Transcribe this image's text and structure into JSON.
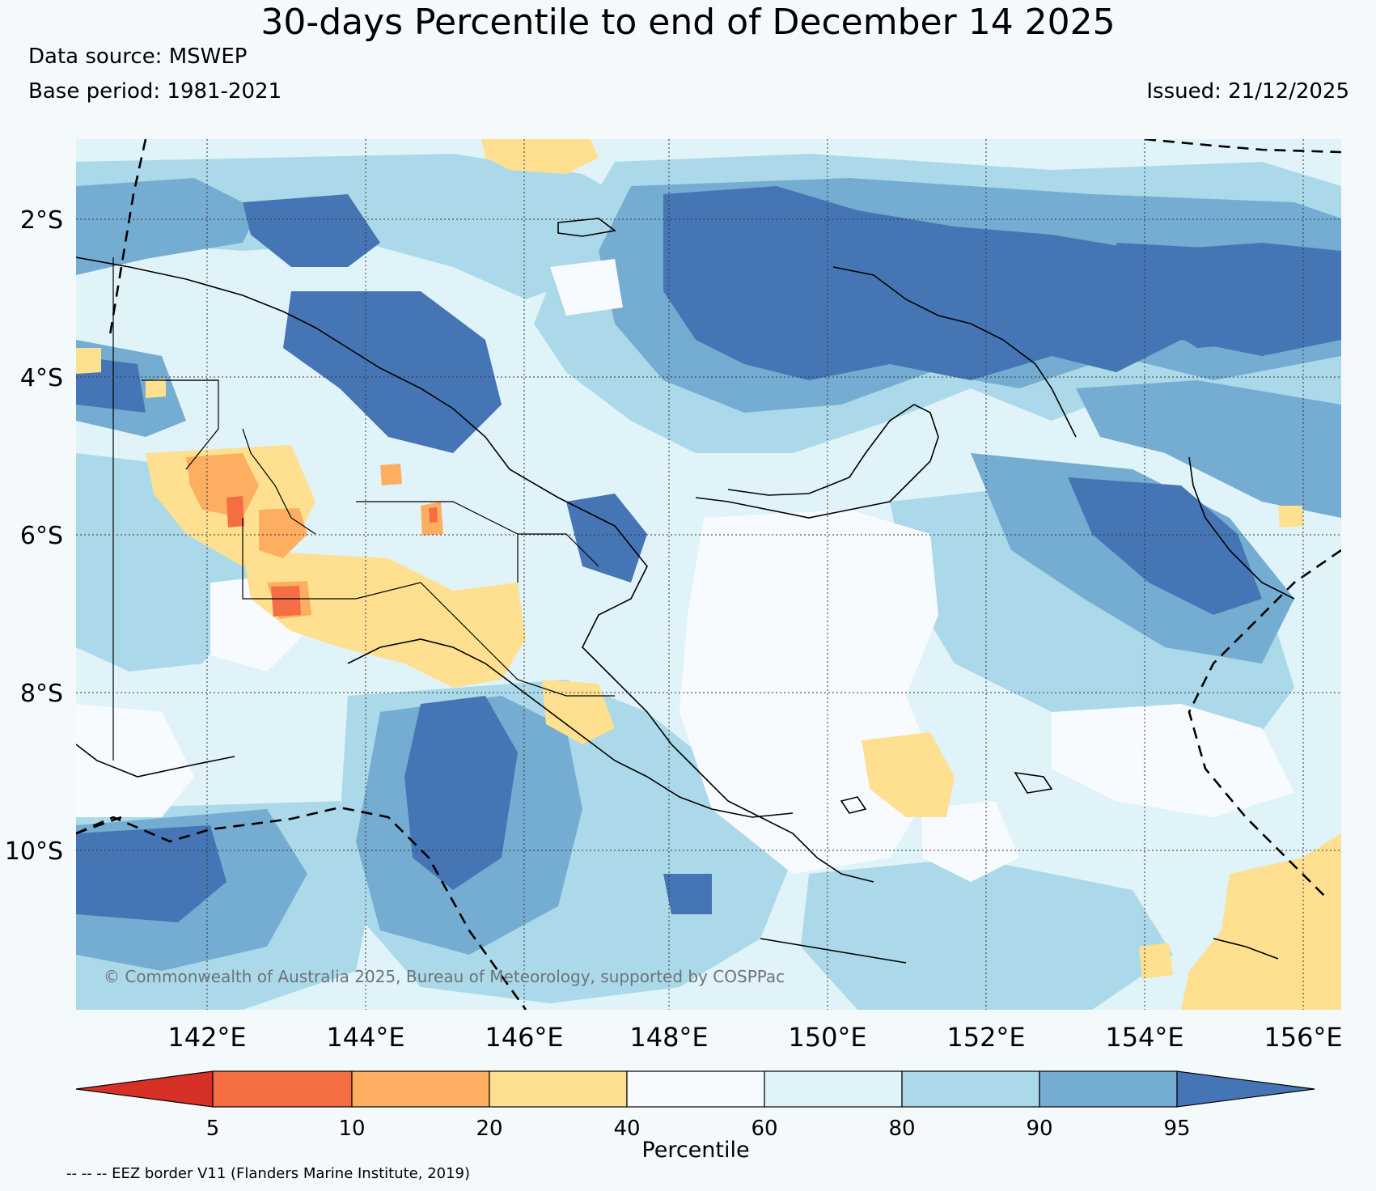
{
  "header": {
    "title": "30-days Percentile to end of December 14 2025",
    "data_source": "Data source: MSWEP",
    "base_period": "Base period: 1981-2021",
    "issued": "Issued: 21/12/2025"
  },
  "map": {
    "lat_labels": [
      "2°S",
      "4°S",
      "6°S",
      "8°S",
      "10°S"
    ],
    "lon_labels": [
      "142°E",
      "144°E",
      "146°E",
      "148°E",
      "150°E",
      "152°E",
      "154°E",
      "156°E"
    ],
    "copyright": "© Commonwealth of Australia 2025, Bureau of Meteorology, supported by COSPPac"
  },
  "legend": {
    "title": "Percentile",
    "bounds": [
      "5",
      "10",
      "20",
      "40",
      "60",
      "80",
      "90",
      "95"
    ],
    "colors": [
      "#d73027",
      "#f46d43",
      "#fdae61",
      "#fee090",
      "#f7fbff",
      "#e0f3f8",
      "#abd9e9",
      "#74add1",
      "#4575b4"
    ]
  },
  "footnote": "-- -- -- EEZ border V11 (Flanders Marine Institute, 2019)"
}
